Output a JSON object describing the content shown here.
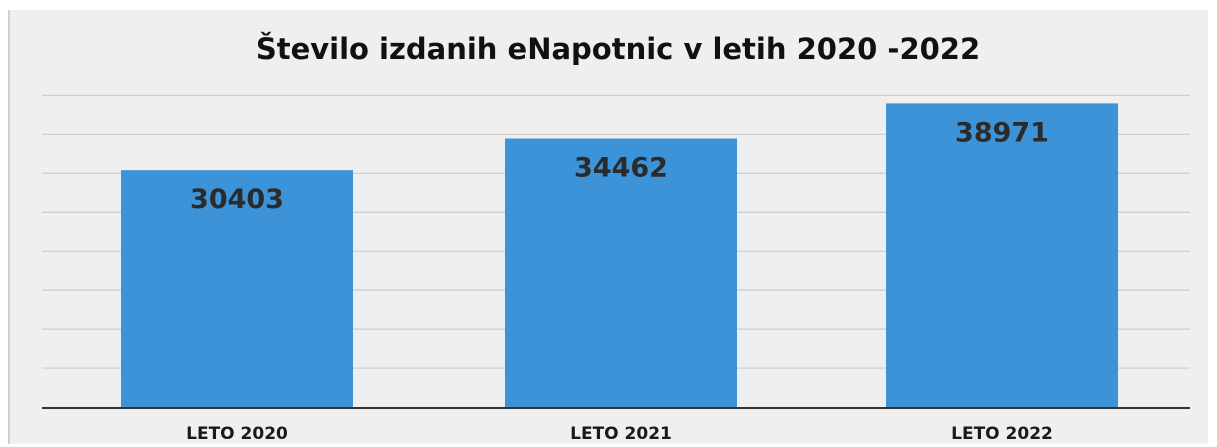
{
  "chart_data": {
    "type": "bar",
    "title": "Število izdanih eNapotnic v letih 2020 -2022",
    "categories": [
      "LETO 2020",
      "LETO 2021",
      "LETO 2022"
    ],
    "values": [
      30403,
      34462,
      38971
    ],
    "ylim": [
      0,
      43000
    ],
    "grid": true,
    "legend": "none",
    "bar_color": "#3d93d8",
    "grid_color": "#cccccc",
    "axis_color": "#333333"
  }
}
